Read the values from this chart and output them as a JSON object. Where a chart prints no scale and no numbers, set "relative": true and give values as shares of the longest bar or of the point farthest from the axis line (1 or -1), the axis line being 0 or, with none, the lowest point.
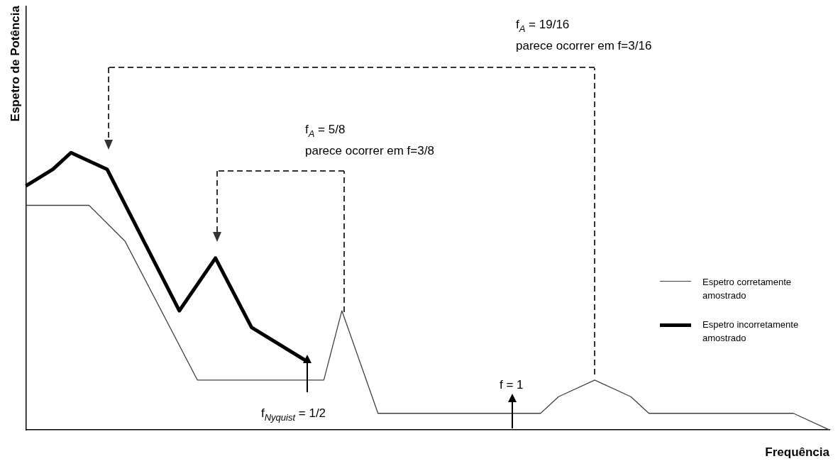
{
  "chart_data": {
    "type": "line",
    "relative": true,
    "xlabel": "Frequência",
    "ylabel": "Espetro de Potência",
    "grid": false,
    "legend": "right",
    "marker": "none",
    "categories": [
      null,
      null,
      null,
      null,
      null,
      null,
      null,
      null,
      null,
      null,
      null,
      null,
      null,
      null,
      null,
      null,
      null,
      null,
      null,
      null,
      null,
      null,
      null,
      null,
      null,
      null,
      null,
      null,
      null,
      null,
      null,
      null,
      null,
      null,
      null,
      null,
      null,
      null,
      null,
      null,
      null,
      null,
      null,
      null,
      null,
      null,
      null,
      null,
      null,
      null,
      null,
      null,
      null,
      null,
      null,
      null,
      null,
      null,
      null,
      null,
      null,
      null,
      null,
      null,
      null,
      null,
      null,
      null,
      null,
      null,
      null,
      null,
      null,
      null,
      null,
      null,
      null,
      null,
      null,
      null,
      null,
      null,
      null,
      null,
      null,
      null,
      null,
      null,
      null,
      null
    ],
    "series": [
      {
        "name": "Espetro corretamente amostrado",
        "color": "#404040",
        "values": [
          0.81,
          null,
          null,
          null,
          null,
          null,
          null,
          0.81,
          null,
          null,
          null,
          0.68,
          null,
          null,
          null,
          null,
          null,
          null,
          null,
          0.18,
          null,
          null,
          null,
          null,
          null,
          null,
          null,
          null,
          null,
          null,
          null,
          null,
          null,
          0.18,
          null,
          0.43,
          null,
          null,
          null,
          0.06,
          null,
          null,
          null,
          null,
          null,
          null,
          null,
          null,
          null,
          null,
          null,
          null,
          null,
          null,
          null,
          null,
          null,
          0.06,
          null,
          0.12,
          null,
          null,
          null,
          0.18,
          null,
          null,
          null,
          0.12,
          null,
          0.06,
          null,
          null,
          null,
          null,
          null,
          null,
          null,
          null,
          null,
          null,
          null,
          null,
          null,
          null,
          null,
          0.06,
          null,
          null,
          null,
          0
        ]
      },
      {
        "name": "Espetro incorretamente amostrado",
        "color": "#000000",
        "values": [
          0.88,
          null,
          null,
          0.94,
          null,
          1,
          null,
          null,
          null,
          0.94,
          null,
          null,
          null,
          null,
          null,
          null,
          null,
          0.43,
          null,
          null,
          null,
          0.62,
          null,
          null,
          null,
          0.37,
          null,
          null,
          null,
          null,
          null,
          0.25,
          null,
          null,
          null,
          null,
          null,
          null,
          null,
          null,
          null,
          null,
          null,
          null,
          null,
          null,
          null,
          null,
          null,
          null,
          null,
          null,
          null,
          null,
          null,
          null,
          null,
          null,
          null,
          null,
          null,
          null,
          null,
          null,
          null,
          null,
          null,
          null,
          null,
          null,
          null,
          null,
          null,
          null,
          null,
          null,
          null,
          null,
          null,
          null,
          null,
          null,
          null,
          null,
          null,
          null,
          null,
          null,
          null,
          null
        ]
      }
    ],
    "annotations": [
      "f$_{A}$ = 19/16",
      "parece ocorrer em f=3/16",
      "f$_{A}$ = 5/8",
      "parece ocorrer em f=3/8",
      "f = 1",
      "f$_{Nyquist}$ = 1/2"
    ]
  }
}
